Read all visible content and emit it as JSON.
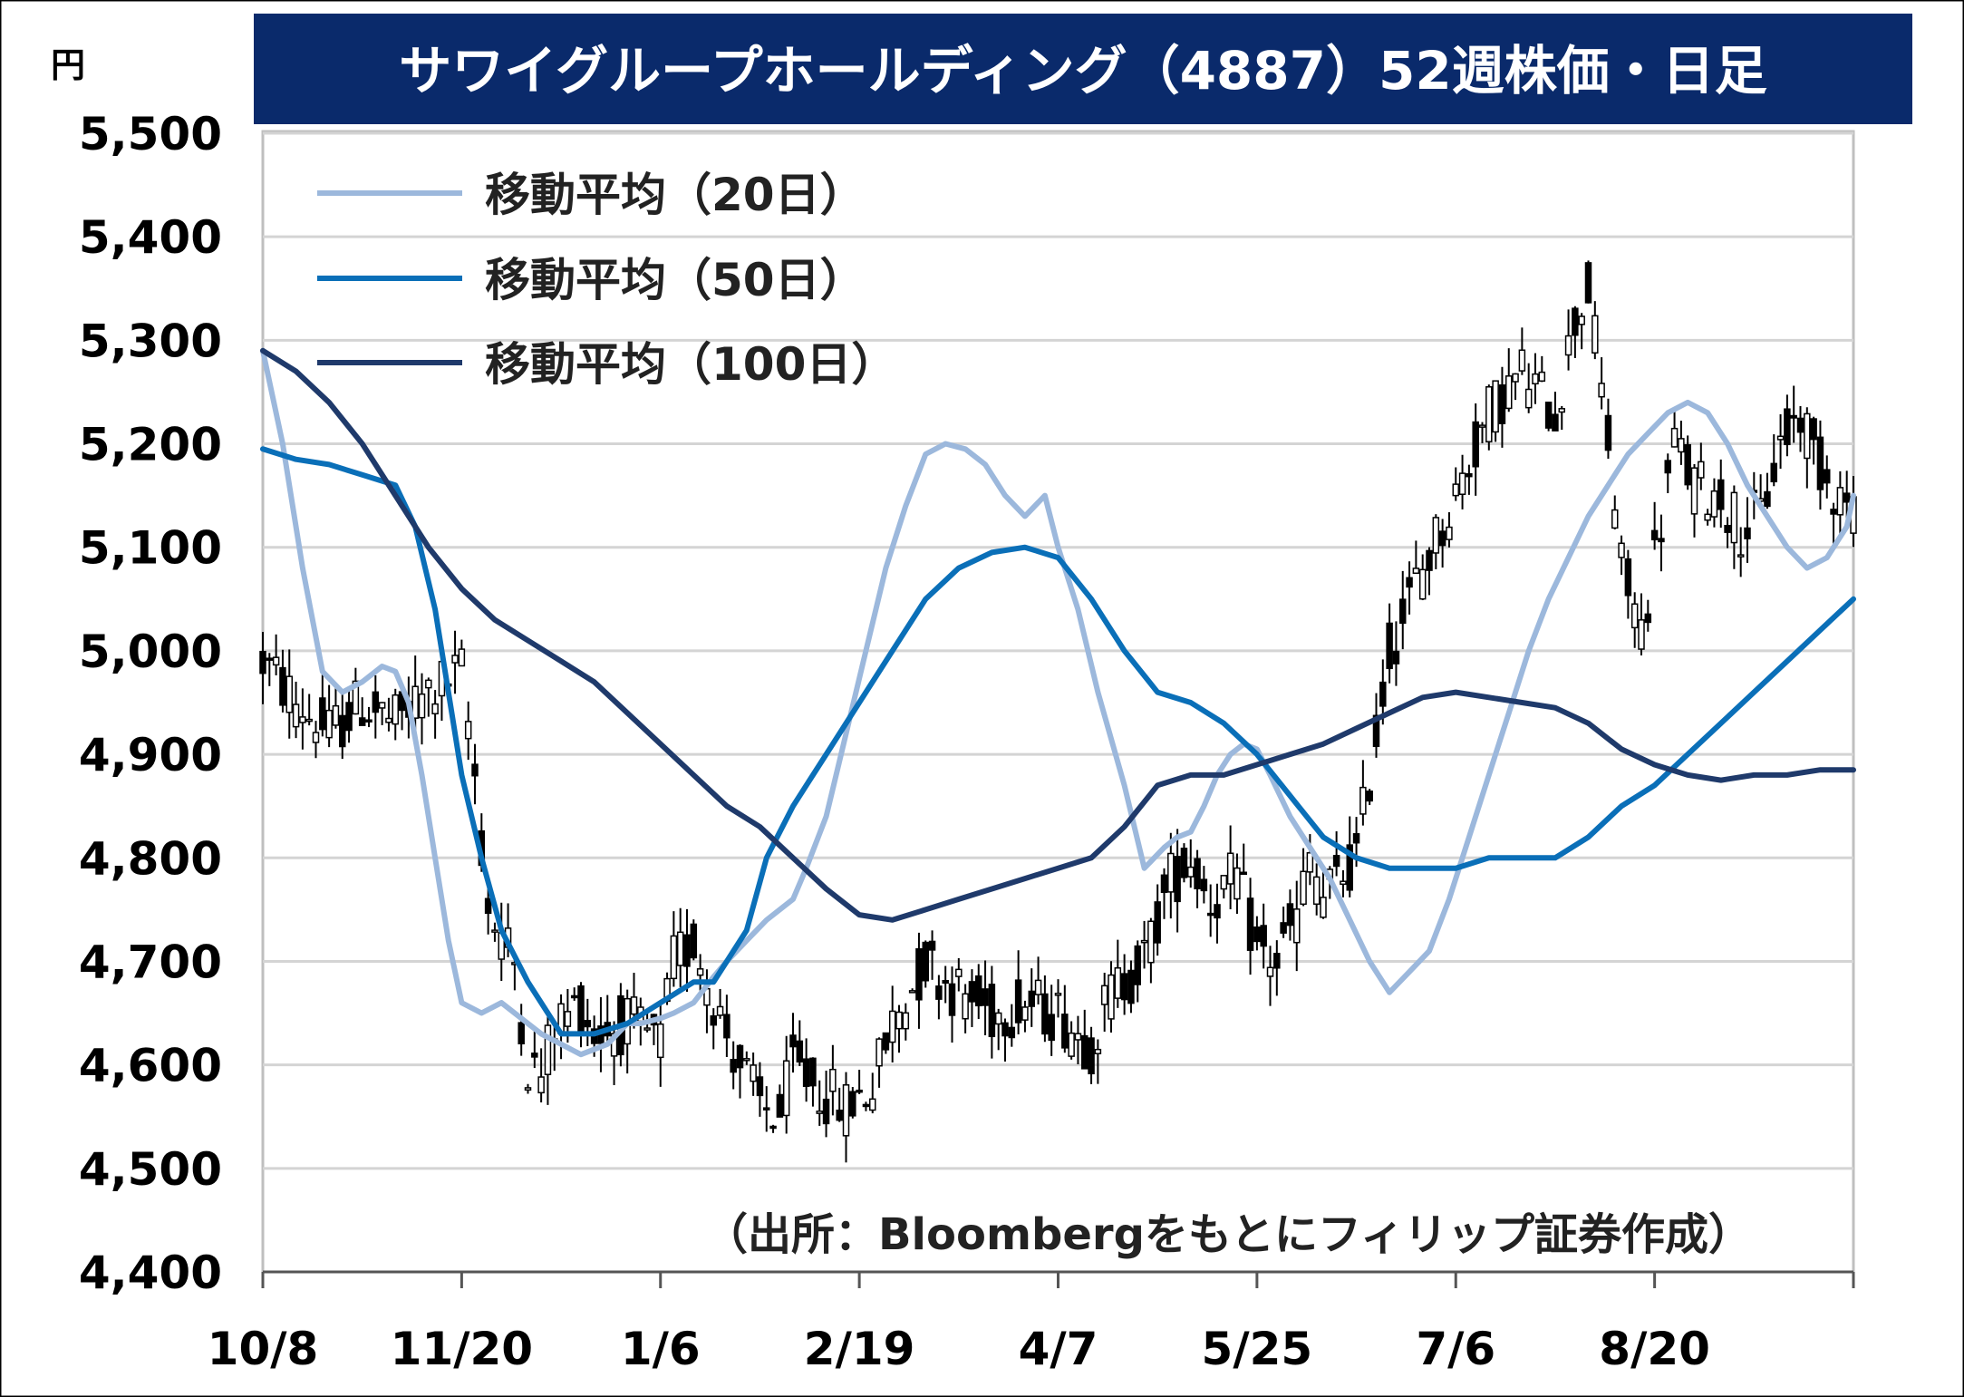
{
  "chart_data": {
    "type": "line",
    "title": "サワイグループホールディング（4887）52週株価・日足",
    "unit": "円",
    "source": "（出所：Bloombergをもとにフィリップ証券作成）",
    "ylim": [
      4400,
      5500
    ],
    "y_ticks": [
      4400,
      4500,
      4600,
      4700,
      4800,
      4900,
      5000,
      5100,
      5200,
      5300,
      5400,
      5500
    ],
    "y_tick_labels": [
      "4,400",
      "4,500",
      "4,600",
      "4,700",
      "4,800",
      "4,900",
      "5,000",
      "5,100",
      "5,200",
      "5,300",
      "5,400",
      "5,500"
    ],
    "x_ticks": [
      0,
      30,
      60,
      90,
      120,
      150,
      180,
      210
    ],
    "x_tick_labels": [
      "10/8",
      "11/20",
      "1/6",
      "2/19",
      "4/7",
      "5/25",
      "7/6",
      "8/20"
    ],
    "x_range": [
      0,
      240
    ],
    "grid": true,
    "legend_position": "top-left",
    "colors": {
      "title_bg": "#0a2a6b",
      "candle": "#000000",
      "grid": "#d4d4d4"
    },
    "candle_anchors": [
      [
        0,
        4990
      ],
      [
        5,
        4950
      ],
      [
        10,
        4920
      ],
      [
        15,
        4950
      ],
      [
        20,
        4930
      ],
      [
        25,
        4960
      ],
      [
        30,
        4980
      ],
      [
        32,
        4880
      ],
      [
        34,
        4750
      ],
      [
        38,
        4700
      ],
      [
        40,
        4600
      ],
      [
        42,
        4590
      ],
      [
        44,
        4640
      ],
      [
        48,
        4660
      ],
      [
        50,
        4630
      ],
      [
        55,
        4640
      ],
      [
        60,
        4620
      ],
      [
        62,
        4700
      ],
      [
        65,
        4720
      ],
      [
        70,
        4630
      ],
      [
        75,
        4560
      ],
      [
        78,
        4550
      ],
      [
        80,
        4600
      ],
      [
        85,
        4570
      ],
      [
        88,
        4560
      ],
      [
        92,
        4580
      ],
      [
        95,
        4640
      ],
      [
        100,
        4700
      ],
      [
        105,
        4670
      ],
      [
        110,
        4650
      ],
      [
        115,
        4660
      ],
      [
        120,
        4650
      ],
      [
        125,
        4620
      ],
      [
        128,
        4670
      ],
      [
        133,
        4700
      ],
      [
        137,
        4780
      ],
      [
        140,
        4800
      ],
      [
        143,
        4760
      ],
      [
        147,
        4780
      ],
      [
        150,
        4710
      ],
      [
        153,
        4700
      ],
      [
        156,
        4740
      ],
      [
        158,
        4800
      ],
      [
        160,
        4760
      ],
      [
        165,
        4800
      ],
      [
        170,
        5000
      ],
      [
        175,
        5080
      ],
      [
        180,
        5150
      ],
      [
        185,
        5230
      ],
      [
        190,
        5270
      ],
      [
        195,
        5230
      ],
      [
        198,
        5320
      ],
      [
        200,
        5350
      ],
      [
        203,
        5200
      ],
      [
        205,
        5080
      ],
      [
        208,
        5020
      ],
      [
        210,
        5090
      ],
      [
        213,
        5200
      ],
      [
        216,
        5160
      ],
      [
        220,
        5150
      ],
      [
        223,
        5120
      ],
      [
        226,
        5130
      ],
      [
        229,
        5200
      ],
      [
        232,
        5230
      ],
      [
        235,
        5180
      ],
      [
        238,
        5150
      ],
      [
        240,
        5140
      ]
    ],
    "series": [
      {
        "name": "移動平均（20日）",
        "color": "#9cb8dc",
        "x": [
          0,
          3,
          6,
          9,
          12,
          15,
          18,
          20,
          22,
          24,
          26,
          28,
          30,
          33,
          36,
          40,
          42,
          45,
          48,
          52,
          55,
          57,
          60,
          62,
          65,
          68,
          70,
          73,
          76,
          80,
          82,
          85,
          88,
          91,
          94,
          97,
          100,
          103,
          106,
          109,
          112,
          115,
          118,
          120,
          123,
          126,
          130,
          133,
          136,
          138,
          140,
          142,
          144,
          146,
          148,
          150,
          152,
          155,
          158,
          161,
          164,
          167,
          170,
          173,
          176,
          179,
          182,
          185,
          188,
          191,
          194,
          197,
          200,
          203,
          206,
          209,
          212,
          215,
          218,
          221,
          224,
          227,
          230,
          233,
          236,
          239,
          240
        ],
        "values": [
          5290,
          5200,
          5080,
          4980,
          4960,
          4970,
          4985,
          4980,
          4950,
          4880,
          4800,
          4720,
          4660,
          4650,
          4660,
          4640,
          4630,
          4620,
          4610,
          4620,
          4640,
          4640,
          4645,
          4650,
          4660,
          4685,
          4700,
          4720,
          4740,
          4760,
          4790,
          4840,
          4920,
          5000,
          5080,
          5140,
          5190,
          5200,
          5195,
          5180,
          5150,
          5130,
          5150,
          5100,
          5040,
          4960,
          4870,
          4790,
          4810,
          4820,
          4825,
          4850,
          4880,
          4900,
          4910,
          4905,
          4880,
          4840,
          4810,
          4780,
          4740,
          4700,
          4670,
          4690,
          4710,
          4760,
          4820,
          4880,
          4940,
          5000,
          5050,
          5090,
          5130,
          5160,
          5190,
          5210,
          5230,
          5240,
          5230,
          5200,
          5160,
          5130,
          5100,
          5080,
          5090,
          5120,
          5150
        ]
      },
      {
        "name": "移動平均（50日）",
        "color": "#0a6fb8",
        "x": [
          0,
          5,
          10,
          15,
          20,
          23,
          26,
          28,
          30,
          33,
          36,
          40,
          45,
          50,
          55,
          60,
          65,
          68,
          70,
          73,
          76,
          80,
          85,
          90,
          95,
          100,
          105,
          110,
          115,
          120,
          125,
          130,
          135,
          140,
          145,
          150,
          155,
          160,
          165,
          170,
          175,
          180,
          185,
          190,
          195,
          200,
          205,
          210,
          215,
          220,
          225,
          230,
          235,
          240
        ],
        "values": [
          5195,
          5185,
          5180,
          5170,
          5160,
          5120,
          5040,
          4960,
          4880,
          4800,
          4730,
          4680,
          4630,
          4630,
          4640,
          4660,
          4680,
          4680,
          4700,
          4730,
          4800,
          4850,
          4900,
          4950,
          5000,
          5050,
          5080,
          5095,
          5100,
          5090,
          5050,
          5000,
          4960,
          4950,
          4930,
          4900,
          4860,
          4820,
          4800,
          4790,
          4790,
          4790,
          4800,
          4800,
          4800,
          4820,
          4850,
          4870,
          4900,
          4930,
          4960,
          4990,
          5020,
          5050
        ]
      },
      {
        "name": "移動平均（100日）",
        "color": "#1f3a6b",
        "x": [
          0,
          5,
          10,
          15,
          20,
          25,
          30,
          35,
          40,
          45,
          50,
          55,
          60,
          65,
          70,
          75,
          80,
          85,
          90,
          95,
          100,
          105,
          110,
          115,
          120,
          125,
          130,
          135,
          140,
          145,
          150,
          155,
          160,
          165,
          170,
          175,
          180,
          185,
          190,
          195,
          200,
          205,
          210,
          215,
          220,
          225,
          230,
          235,
          240
        ],
        "values": [
          5290,
          5270,
          5240,
          5200,
          5150,
          5100,
          5060,
          5030,
          5010,
          4990,
          4970,
          4940,
          4910,
          4880,
          4850,
          4830,
          4800,
          4770,
          4745,
          4740,
          4750,
          4760,
          4770,
          4780,
          4790,
          4800,
          4830,
          4870,
          4880,
          4880,
          4890,
          4900,
          4910,
          4925,
          4940,
          4955,
          4960,
          4955,
          4950,
          4945,
          4930,
          4905,
          4890,
          4880,
          4875,
          4880,
          4880,
          4885,
          4885
        ]
      }
    ]
  }
}
